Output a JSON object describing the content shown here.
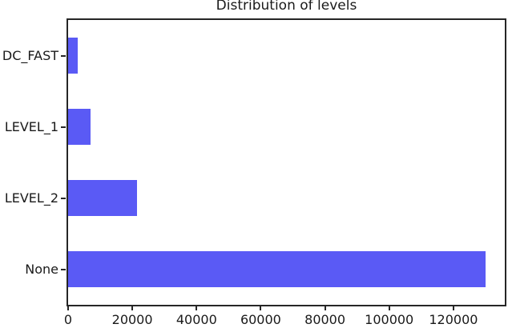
{
  "chart_data": {
    "type": "bar",
    "orientation": "horizontal",
    "title": "Distribution of levels",
    "categories": [
      "DC_FAST",
      "LEVEL_1",
      "LEVEL_2",
      "None"
    ],
    "values": [
      3000,
      7000,
      21400,
      130000
    ],
    "xticks": [
      0,
      20000,
      40000,
      60000,
      80000,
      100000,
      120000
    ],
    "xlim": [
      0,
      136000
    ],
    "xlabel": "",
    "ylabel": "",
    "grid": false,
    "legend_position": "none",
    "bar_color": "#5a5af5",
    "axis_color": "#262626",
    "text_color": "#1a1a1a",
    "background_color": "#ffffff"
  }
}
